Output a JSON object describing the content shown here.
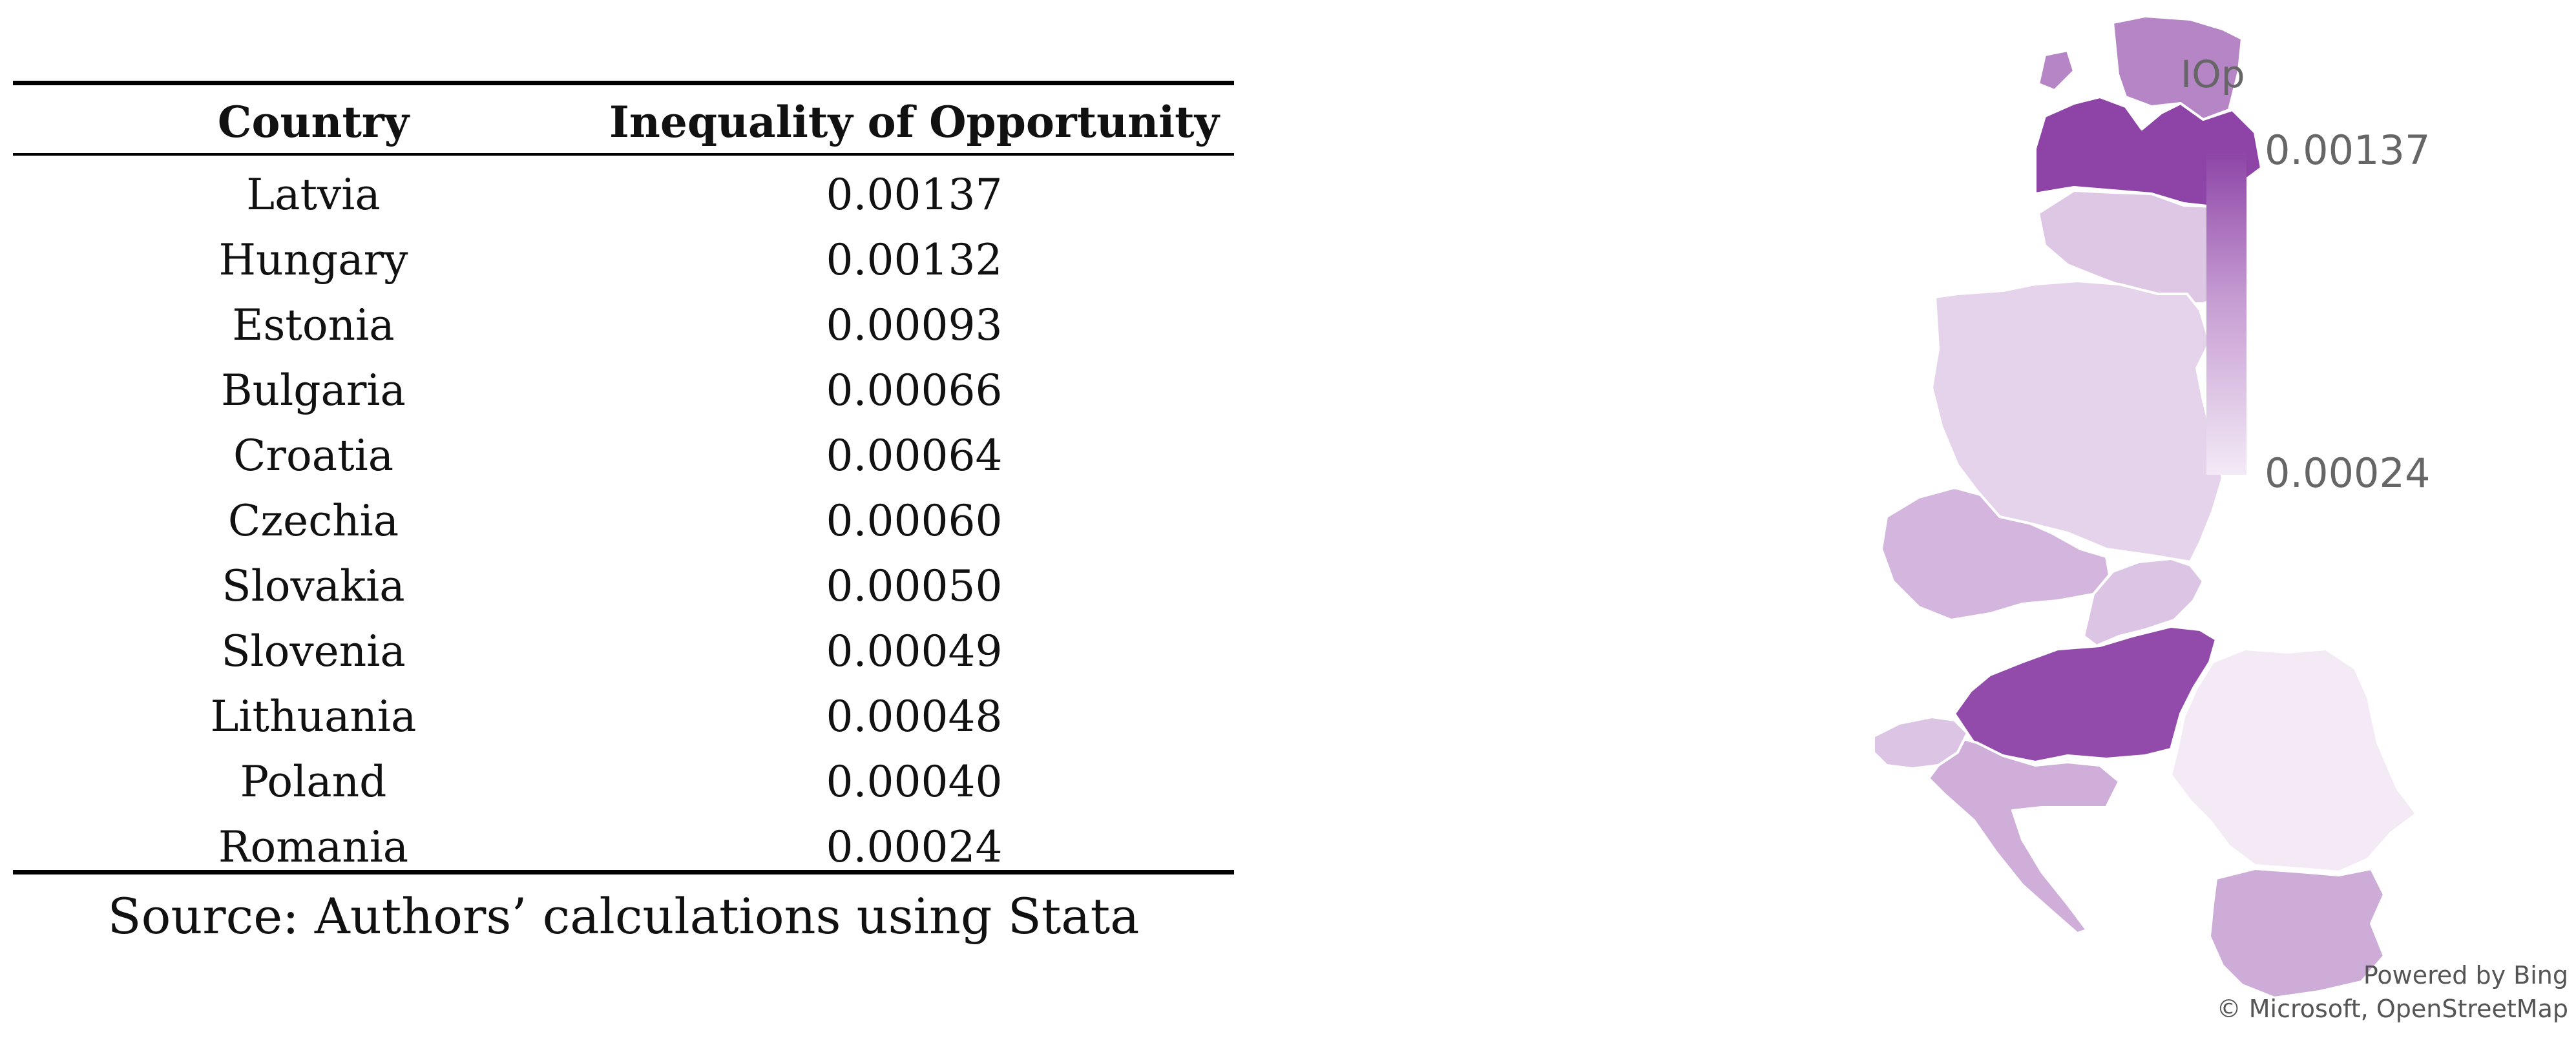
{
  "table": {
    "headers": {
      "country": "Country",
      "iop": "Inequality of Opportunity"
    },
    "rows": [
      {
        "country": "Latvia",
        "value": "0.00137"
      },
      {
        "country": "Hungary",
        "value": "0.00132"
      },
      {
        "country": "Estonia",
        "value": "0.00093"
      },
      {
        "country": "Bulgaria",
        "value": "0.00066"
      },
      {
        "country": "Croatia",
        "value": "0.00064"
      },
      {
        "country": "Czechia",
        "value": "0.00060"
      },
      {
        "country": "Slovakia",
        "value": "0.00050"
      },
      {
        "country": "Slovenia",
        "value": "0.00049"
      },
      {
        "country": "Lithuania",
        "value": "0.00048"
      },
      {
        "country": "Poland",
        "value": "0.00040"
      },
      {
        "country": "Romania",
        "value": "0.00024"
      }
    ],
    "source": "Source: Authors’ calculations using Stata"
  },
  "map": {
    "legend": {
      "title": "IOp",
      "max_label": "0.00137",
      "min_label": "0.00024",
      "max": 0.00137,
      "min": 0.00024
    },
    "colors": {
      "low": "#f3eaf6",
      "high": "#8d44a6"
    },
    "attribution": {
      "line1": "Powered by Bing",
      "line2": "© Microsoft, OpenStreetMap"
    }
  }
}
